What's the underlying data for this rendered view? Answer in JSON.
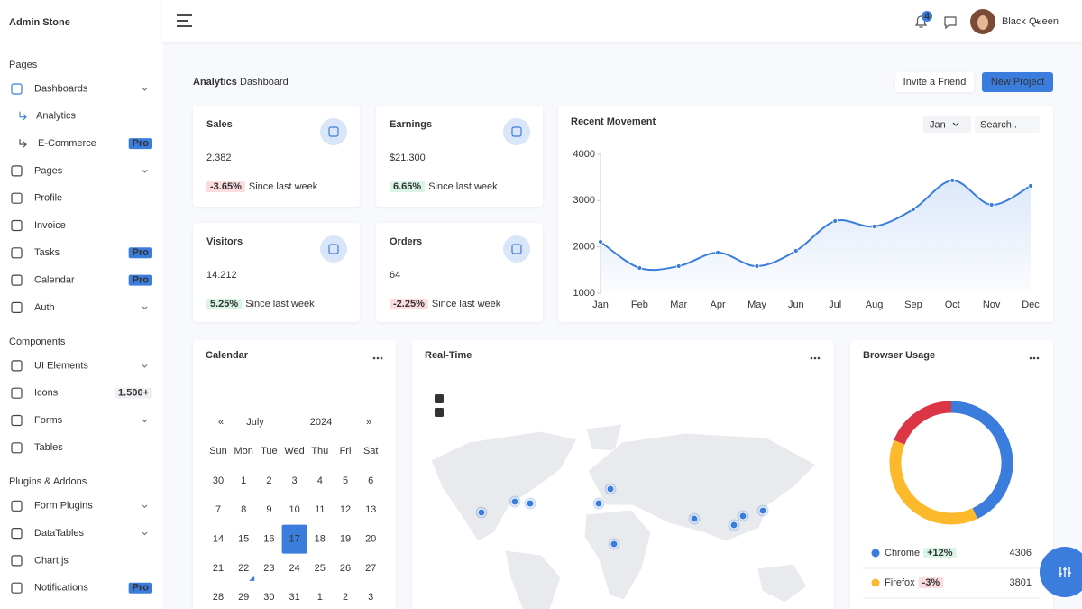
{
  "sidebar": {
    "brand": "Admin Stone",
    "sections": [
      {
        "title": "Pages",
        "items": [
          {
            "label": "Dashboards",
            "active": true,
            "expandable": true
          },
          {
            "label": "Analytics",
            "active": true,
            "sub": true
          },
          {
            "label": "E-Commerce",
            "sub": true,
            "badge": "Pro"
          },
          {
            "label": "Pages",
            "expandable": true
          },
          {
            "label": "Profile"
          },
          {
            "label": "Invoice"
          },
          {
            "label": "Tasks",
            "badge": "Pro"
          },
          {
            "label": "Calendar",
            "badge": "Pro"
          },
          {
            "label": "Auth",
            "expandable": true
          }
        ]
      },
      {
        "title": "Components",
        "items": [
          {
            "label": "UI Elements",
            "expandable": true
          },
          {
            "label": "Icons",
            "badge": "1.500+"
          },
          {
            "label": "Forms",
            "expandable": true
          },
          {
            "label": "Tables"
          }
        ]
      },
      {
        "title": "Plugins & Addons",
        "items": [
          {
            "label": "Form Plugins",
            "expandable": true
          },
          {
            "label": "DataTables",
            "expandable": true
          },
          {
            "label": "Chart.js"
          },
          {
            "label": "Notifications",
            "badge": "Pro"
          }
        ]
      }
    ]
  },
  "topbar": {
    "notifications": 4,
    "user": "Black Queen"
  },
  "header": {
    "title_bold": "Analytics",
    "title_rest": "Dashboard",
    "buttons": [
      "Invite a Friend",
      "New Project"
    ]
  },
  "stats": [
    {
      "label": "Sales",
      "value": "2.382",
      "change": "-3.65%",
      "note": "Since last week"
    },
    {
      "label": "Earnings",
      "value": "$21.300",
      "change": "6.65%",
      "note": "Since last week"
    },
    {
      "label": "Visitors",
      "value": "14.212",
      "change": "5.25%",
      "note": "Since last week"
    },
    {
      "label": "Orders",
      "value": "64",
      "change": "-2.25%",
      "note": "Since last week"
    }
  ],
  "calendar": {
    "title": "Calendar",
    "prev": "«",
    "next": "»",
    "month": "July",
    "year": 2024,
    "weekdays": [
      "Sun",
      "Mon",
      "Tue",
      "Wed",
      "Thu",
      "Fri",
      "Sat"
    ],
    "weeks": [
      [
        30,
        1,
        2,
        3,
        4,
        5,
        6
      ],
      [
        7,
        8,
        9,
        10,
        11,
        12,
        13
      ],
      [
        14,
        15,
        16,
        17,
        18,
        19,
        20
      ],
      [
        21,
        22,
        23,
        24,
        25,
        26,
        27
      ],
      [
        28,
        29,
        30,
        31,
        1,
        2,
        3
      ]
    ],
    "selected": 17,
    "today": 22
  },
  "map": {
    "title": "Real-Time",
    "zoom_in": "+",
    "zoom_out": "−"
  },
  "chart_data": [
    {
      "type": "line",
      "title": "Recent Movement",
      "filter": "Jan",
      "search_placeholder": "Search..",
      "categories": [
        "Jan",
        "Feb",
        "Mar",
        "Apr",
        "May",
        "Jun",
        "Jul",
        "Aug",
        "Sep",
        "Oct",
        "Nov",
        "Dec"
      ],
      "values": [
        2110,
        1545,
        1584,
        1877,
        1584,
        1916,
        2558,
        2442,
        2812,
        3435,
        2909,
        3318
      ],
      "color": "#3b7ddd",
      "ylim": [
        1000,
        4000
      ],
      "yticks": [
        1000,
        2000,
        3000,
        4000
      ],
      "grid": false
    },
    {
      "type": "pie",
      "donut": true,
      "title": "Browser Usage",
      "categories": [
        "Chrome",
        "Firefox",
        null
      ],
      "values": [
        4306,
        3801,
        1900
      ],
      "changes": [
        "+12%",
        "-3%",
        null
      ],
      "colors": [
        "#3b7ddd",
        "#fcb92c",
        "#dc3545"
      ]
    }
  ]
}
